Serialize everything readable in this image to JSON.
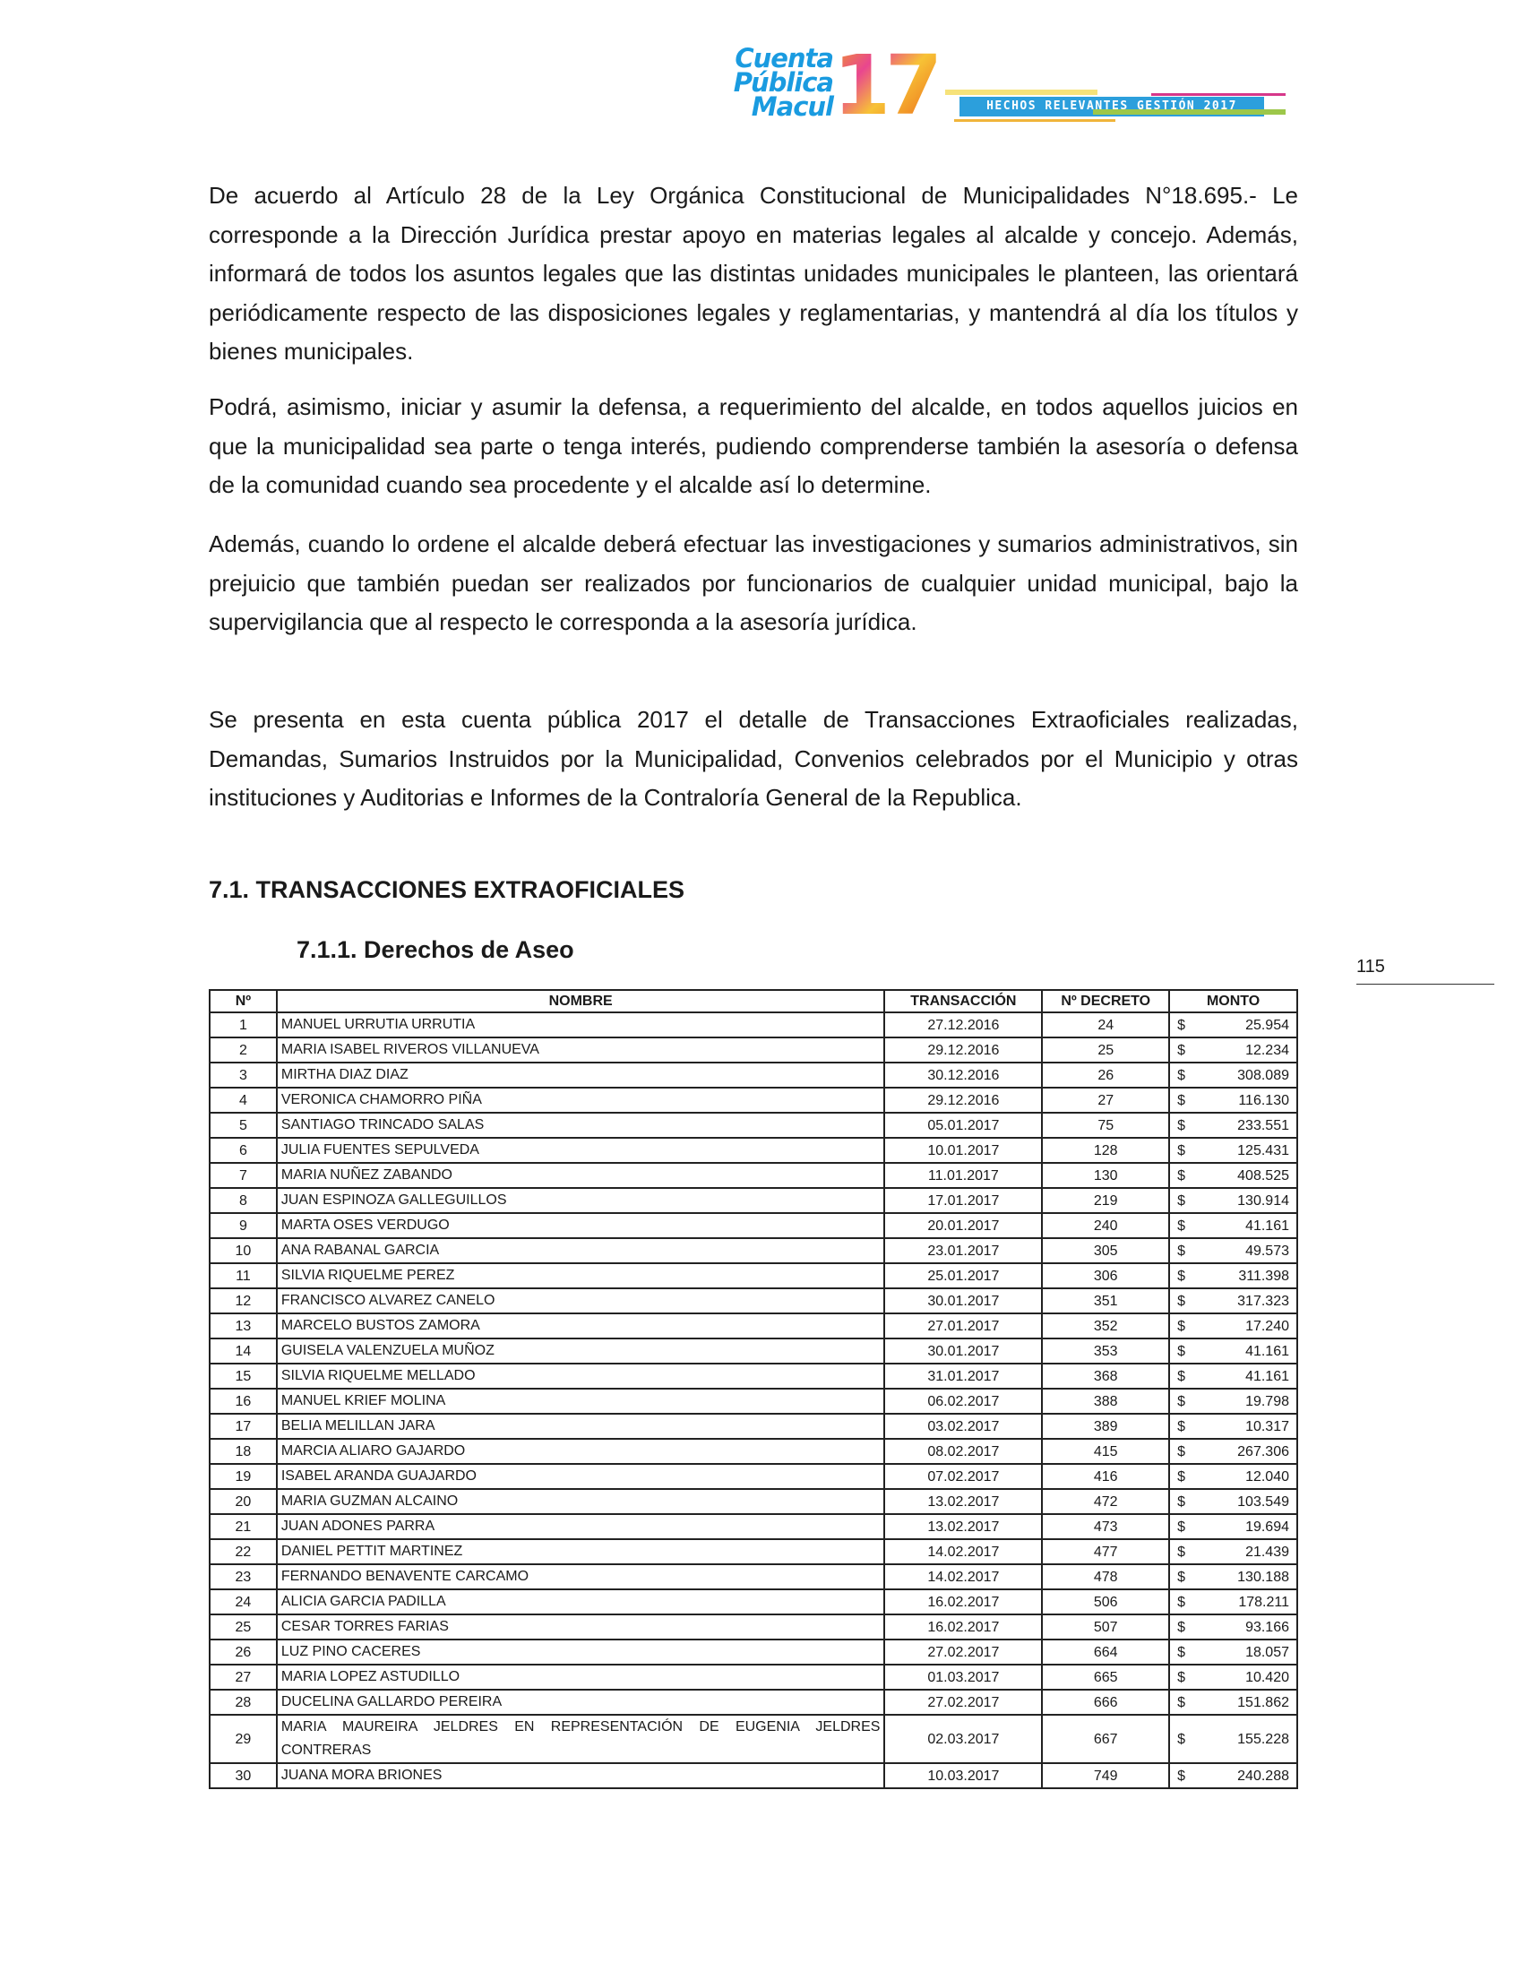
{
  "header": {
    "logo_text": [
      "Cuenta",
      "Pública",
      "Macul",
      "17"
    ],
    "banner": "HECHOS RELEVANTES GESTIÓN 2017",
    "colors": {
      "logo_blue": "#1a9be0",
      "banner_blue": "#2c9fdc",
      "orange": "#f39a1e",
      "pink": "#e9468f"
    }
  },
  "paragraphs": [
    "De acuerdo al Artículo 28 de la Ley Orgánica Constitucional de Municipalidades N°18.695.- Le corresponde a la Dirección Jurídica prestar apoyo en materias legales al alcalde y concejo. Además, informará de todos los asuntos legales que las distintas unidades municipales le planteen, las orientará periódicamente respecto de las disposiciones legales y reglamentarias, y mantendrá al día los títulos y bienes municipales.",
    "Podrá, asimismo, iniciar y asumir la defensa, a requerimiento del alcalde, en todos aquellos juicios en que la municipalidad sea parte o tenga interés, pudiendo comprenderse también la asesoría o defensa de la comunidad cuando sea procedente y el alcalde así lo determine.",
    "Además, cuando lo ordene el alcalde deberá efectuar las investigaciones y sumarios administrativos, sin prejuicio que también puedan ser realizados por funcionarios de cualquier unidad municipal, bajo la supervigilancia que al respecto le corresponda a la asesoría jurídica.",
    "Se presenta en esta cuenta pública 2017 el detalle de Transacciones Extraoficiales realizadas, Demandas, Sumarios Instruidos por la Municipalidad, Convenios celebrados por el Municipio y otras instituciones y Auditorias e Informes de la Contraloría General de la Republica."
  ],
  "section_title": "7.1. TRANSACCIONES EXTRAOFICIALES",
  "subsection_title": "7.1.1. Derechos de Aseo",
  "page_number": "115",
  "table": {
    "headers": [
      "Nº",
      "NOMBRE",
      "TRANSACCIÓN",
      "Nº DECRETO",
      "MONTO"
    ],
    "currency": "$",
    "rows": [
      [
        "1",
        "MANUEL URRUTIA URRUTIA",
        "27.12.2016",
        "24",
        "25.954"
      ],
      [
        "2",
        "MARIA ISABEL RIVEROS VILLANUEVA",
        "29.12.2016",
        "25",
        "12.234"
      ],
      [
        "3",
        "MIRTHA DIAZ DIAZ",
        "30.12.2016",
        "26",
        "308.089"
      ],
      [
        "4",
        "VERONICA CHAMORRO PIÑA",
        "29.12.2016",
        "27",
        "116.130"
      ],
      [
        "5",
        "SANTIAGO TRINCADO SALAS",
        "05.01.2017",
        "75",
        "233.551"
      ],
      [
        "6",
        "JULIA FUENTES SEPULVEDA",
        "10.01.2017",
        "128",
        "125.431"
      ],
      [
        "7",
        "MARIA NUÑEZ ZABANDO",
        "11.01.2017",
        "130",
        "408.525"
      ],
      [
        "8",
        "JUAN ESPINOZA GALLEGUILLOS",
        "17.01.2017",
        "219",
        "130.914"
      ],
      [
        "9",
        "MARTA OSES VERDUGO",
        "20.01.2017",
        "240",
        "41.161"
      ],
      [
        "10",
        "ANA RABANAL GARCIA",
        "23.01.2017",
        "305",
        "49.573"
      ],
      [
        "11",
        "SILVIA RIQUELME PEREZ",
        "25.01.2017",
        "306",
        "311.398"
      ],
      [
        "12",
        "FRANCISCO ALVAREZ CANELO",
        "30.01.2017",
        "351",
        "317.323"
      ],
      [
        "13",
        "MARCELO BUSTOS ZAMORA",
        "27.01.2017",
        "352",
        "17.240"
      ],
      [
        "14",
        "GUISELA VALENZUELA MUÑOZ",
        "30.01.2017",
        "353",
        "41.161"
      ],
      [
        "15",
        "SILVIA RIQUELME MELLADO",
        "31.01.2017",
        "368",
        "41.161"
      ],
      [
        "16",
        "MANUEL KRIEF MOLINA",
        "06.02.2017",
        "388",
        "19.798"
      ],
      [
        "17",
        "BELIA MELILLAN JARA",
        "03.02.2017",
        "389",
        "10.317"
      ],
      [
        "18",
        "MARCIA ALIARO GAJARDO",
        "08.02.2017",
        "415",
        "267.306"
      ],
      [
        "19",
        "ISABEL ARANDA GUAJARDO",
        "07.02.2017",
        "416",
        "12.040"
      ],
      [
        "20",
        "MARIA GUZMAN ALCAINO",
        "13.02.2017",
        "472",
        "103.549"
      ],
      [
        "21",
        "JUAN ADONES PARRA",
        "13.02.2017",
        "473",
        "19.694"
      ],
      [
        "22",
        "DANIEL PETTIT MARTINEZ",
        "14.02.2017",
        "477",
        "21.439"
      ],
      [
        "23",
        "FERNANDO BENAVENTE CARCAMO",
        "14.02.2017",
        "478",
        "130.188"
      ],
      [
        "24",
        "ALICIA GARCIA PADILLA",
        "16.02.2017",
        "506",
        "178.211"
      ],
      [
        "25",
        "CESAR TORRES FARIAS",
        "16.02.2017",
        "507",
        "93.166"
      ],
      [
        "26",
        "LUZ PINO CACERES",
        "27.02.2017",
        "664",
        "18.057"
      ],
      [
        "27",
        "MARIA LOPEZ ASTUDILLO",
        "01.03.2017",
        "665",
        "10.420"
      ],
      [
        "28",
        "DUCELINA GALLARDO PEREIRA",
        "27.02.2017",
        "666",
        "151.862"
      ],
      [
        "29",
        "MARIA MAUREIRA JELDRES EN REPRESENTACIÓN DE EUGENIA JELDRES CONTRERAS",
        "02.03.2017",
        "667",
        "155.228"
      ],
      [
        "30",
        "JUANA MORA BRIONES",
        "10.03.2017",
        "749",
        "240.288"
      ]
    ]
  }
}
